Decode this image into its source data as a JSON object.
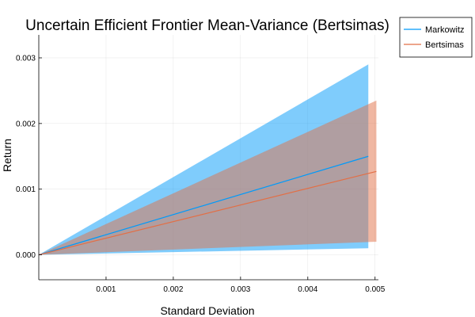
{
  "chart_data": {
    "type": "line",
    "title": "Uncertain Efficient Frontier Mean-Variance (Bertsimas)",
    "xlabel": "Standard Deviation",
    "ylabel": "Return",
    "xlim": [
      0.0,
      0.00505
    ],
    "ylim": [
      -0.00038,
      0.00335
    ],
    "x_ticks": [
      0.001,
      0.002,
      0.003,
      0.004,
      0.005
    ],
    "x_tick_labels": [
      "0.001",
      "0.002",
      "0.003",
      "0.004",
      "0.005"
    ],
    "y_ticks": [
      0.0,
      0.001,
      0.002,
      0.003
    ],
    "y_tick_labels": [
      "0.000",
      "0.001",
      "0.002",
      "0.003"
    ],
    "grid": true,
    "legend_position": "top-right",
    "series": [
      {
        "name": "Markowitz",
        "color": "#009AFA",
        "band_color": "#0099FA",
        "x": [
          0.0,
          0.0049
        ],
        "y": [
          0.0,
          0.0015
        ],
        "band_upper": [
          0.0,
          0.0029
        ],
        "band_lower": [
          0.0,
          0.0001
        ]
      },
      {
        "name": "Bertsimas",
        "color": "#E26F46",
        "band_color": "#E26F46",
        "x": [
          0.0,
          0.00502
        ],
        "y": [
          0.0,
          0.00127
        ],
        "band_upper": [
          0.0,
          0.00235
        ],
        "band_lower": [
          0.0,
          0.0002
        ]
      }
    ]
  }
}
